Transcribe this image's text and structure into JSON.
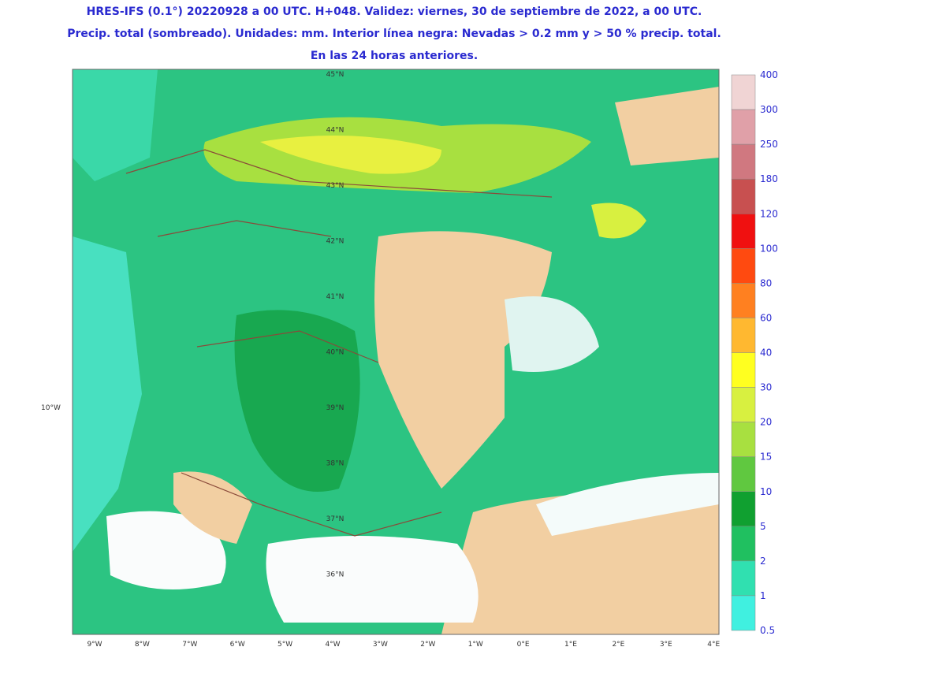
{
  "header": {
    "lines": [
      "HRES-IFS (0.1°) 20220928 a 00 UTC. H+048. Validez: viernes, 30 de septiembre de 2022, a 00 UTC.",
      "Precip. total (sombreado). Unidades: mm. Interior línea negra: Nevadas > 0.2 mm y > 50 % precip. total.",
      "En las 24 horas anteriores."
    ]
  },
  "map": {
    "left_label": "10°W",
    "lon_labels": [
      "9°W",
      "8°W",
      "7°W",
      "6°W",
      "5°W",
      "4°W",
      "3°W",
      "2°W",
      "1°W",
      "0°E",
      "1°E",
      "2°E",
      "3°E",
      "4°E"
    ],
    "lat_labels": [
      "45°N",
      "44°N",
      "43°N",
      "42°N",
      "41°N",
      "40°N",
      "39°N",
      "38°N",
      "37°N",
      "36°N"
    ]
  },
  "colorbar": {
    "labels": [
      "400",
      "300",
      "250",
      "180",
      "120",
      "100",
      "80",
      "60",
      "40",
      "30",
      "20",
      "15",
      "10",
      "5",
      "2",
      "1",
      "0.5"
    ],
    "colors": [
      "#f0d4d4",
      "#e0a0a8",
      "#d07880",
      "#c85050",
      "#f01010",
      "#ff4a10",
      "#ff8020",
      "#ffb830",
      "#ffff20",
      "#d8f040",
      "#a8e040",
      "#60c840",
      "#10a030",
      "#20c060",
      "#30e0b0",
      "#40f0e0",
      "#b8e0e8"
    ]
  }
}
